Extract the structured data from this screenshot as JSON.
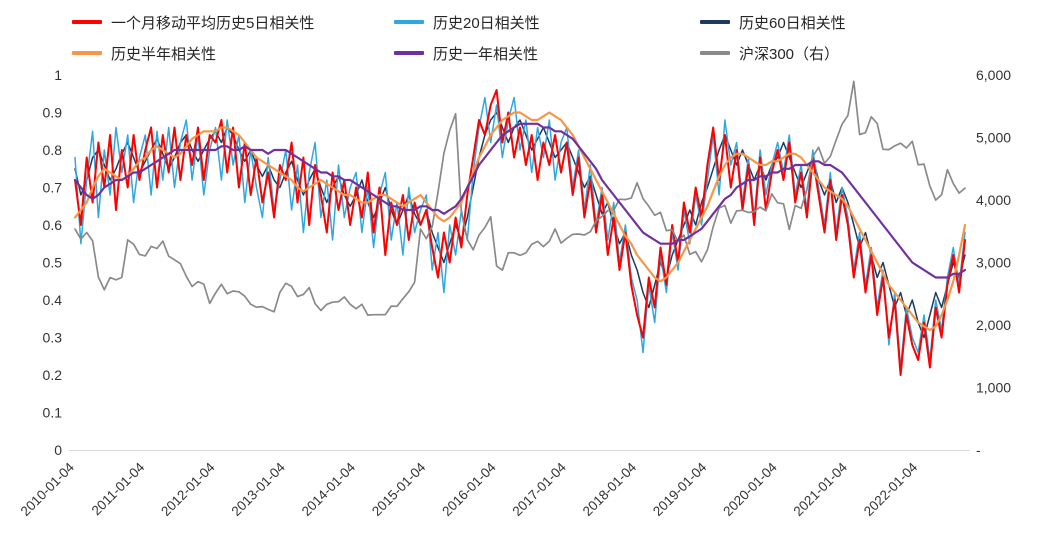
{
  "chart_data": {
    "type": "line",
    "title": "",
    "x_start": {
      "year": 2010,
      "month": 1
    },
    "points_per_year": 12,
    "x_tick_labels": [
      "2010-01-04",
      "2011-01-04",
      "2012-01-04",
      "2013-01-04",
      "2014-01-04",
      "2015-01-04",
      "2016-01-04",
      "2017-01-04",
      "2018-01-04",
      "2019-01-04",
      "2020-01-04",
      "2021-01-04",
      "2022-01-04"
    ],
    "left_axis": {
      "min": 0,
      "max": 1,
      "ticks": [
        "0",
        "0.1",
        "0.2",
        "0.3",
        "0.4",
        "0.5",
        "0.6",
        "0.7",
        "0.8",
        "0.9",
        "1"
      ]
    },
    "right_axis": {
      "min": 0,
      "max": 6000,
      "ticks": [
        "-",
        "1,000",
        "2,000",
        "3,000",
        "4,000",
        "5,000",
        "6,000"
      ]
    },
    "grid": "off",
    "legend_position": "top",
    "series": [
      {
        "name": "一个月移动平均历史5日相关性",
        "color": "#FE0000",
        "axis": "left",
        "values": [
          0.72,
          0.6,
          0.78,
          0.66,
          0.82,
          0.7,
          0.84,
          0.64,
          0.8,
          0.7,
          0.84,
          0.72,
          0.8,
          0.86,
          0.7,
          0.84,
          0.74,
          0.86,
          0.72,
          0.84,
          0.76,
          0.86,
          0.72,
          0.84,
          0.82,
          0.88,
          0.74,
          0.86,
          0.7,
          0.82,
          0.68,
          0.78,
          0.66,
          0.74,
          0.62,
          0.76,
          0.72,
          0.82,
          0.66,
          0.78,
          0.6,
          0.76,
          0.68,
          0.58,
          0.74,
          0.64,
          0.72,
          0.6,
          0.7,
          0.62,
          0.74,
          0.58,
          0.7,
          0.52,
          0.66,
          0.6,
          0.68,
          0.56,
          0.66,
          0.6,
          0.64,
          0.54,
          0.46,
          0.58,
          0.5,
          0.62,
          0.54,
          0.68,
          0.78,
          0.88,
          0.84,
          0.92,
          0.96,
          0.82,
          0.9,
          0.78,
          0.86,
          0.76,
          0.84,
          0.72,
          0.82,
          0.76,
          0.84,
          0.74,
          0.82,
          0.68,
          0.78,
          0.62,
          0.72,
          0.58,
          0.68,
          0.52,
          0.62,
          0.48,
          0.58,
          0.44,
          0.36,
          0.3,
          0.46,
          0.38,
          0.54,
          0.44,
          0.6,
          0.5,
          0.66,
          0.58,
          0.7,
          0.62,
          0.76,
          0.86,
          0.72,
          0.84,
          0.7,
          0.8,
          0.64,
          0.76,
          0.6,
          0.78,
          0.64,
          0.74,
          0.8,
          0.72,
          0.82,
          0.66,
          0.74,
          0.62,
          0.78,
          0.68,
          0.58,
          0.72,
          0.56,
          0.68,
          0.6,
          0.46,
          0.56,
          0.42,
          0.52,
          0.36,
          0.46,
          0.3,
          0.4,
          0.2,
          0.36,
          0.28,
          0.24,
          0.34,
          0.22,
          0.38,
          0.3,
          0.44,
          0.52,
          0.42,
          0.56
        ]
      },
      {
        "name": "历史20日相关性",
        "color": "#2FA8DF",
        "axis": "left",
        "values": [
          0.78,
          0.55,
          0.72,
          0.85,
          0.62,
          0.8,
          0.68,
          0.86,
          0.74,
          0.84,
          0.66,
          0.78,
          0.84,
          0.68,
          0.85,
          0.72,
          0.86,
          0.7,
          0.82,
          0.88,
          0.72,
          0.84,
          0.68,
          0.8,
          0.86,
          0.72,
          0.88,
          0.76,
          0.84,
          0.66,
          0.8,
          0.7,
          0.62,
          0.78,
          0.64,
          0.72,
          0.8,
          0.64,
          0.76,
          0.58,
          0.74,
          0.82,
          0.62,
          0.72,
          0.56,
          0.76,
          0.62,
          0.7,
          0.74,
          0.58,
          0.7,
          0.54,
          0.68,
          0.74,
          0.56,
          0.66,
          0.52,
          0.7,
          0.58,
          0.64,
          0.68,
          0.48,
          0.58,
          0.42,
          0.6,
          0.52,
          0.64,
          0.56,
          0.74,
          0.86,
          0.94,
          0.82,
          0.92,
          0.78,
          0.88,
          0.94,
          0.8,
          0.88,
          0.74,
          0.86,
          0.78,
          0.88,
          0.72,
          0.82,
          0.86,
          0.7,
          0.8,
          0.64,
          0.76,
          0.6,
          0.7,
          0.56,
          0.66,
          0.5,
          0.6,
          0.46,
          0.4,
          0.26,
          0.44,
          0.34,
          0.52,
          0.42,
          0.58,
          0.48,
          0.64,
          0.55,
          0.68,
          0.6,
          0.72,
          0.84,
          0.68,
          0.88,
          0.76,
          0.82,
          0.66,
          0.78,
          0.62,
          0.8,
          0.68,
          0.76,
          0.82,
          0.74,
          0.84,
          0.68,
          0.76,
          0.64,
          0.8,
          0.7,
          0.6,
          0.74,
          0.58,
          0.7,
          0.62,
          0.48,
          0.58,
          0.44,
          0.54,
          0.38,
          0.48,
          0.28,
          0.42,
          0.22,
          0.38,
          0.3,
          0.26,
          0.36,
          0.24,
          0.4,
          0.32,
          0.46,
          0.54,
          0.44,
          0.58
        ]
      },
      {
        "name": "历史60日相关性",
        "color": "#1F3A5F",
        "axis": "left",
        "values": [
          0.75,
          0.68,
          0.72,
          0.78,
          0.8,
          0.76,
          0.72,
          0.75,
          0.79,
          0.82,
          0.78,
          0.74,
          0.77,
          0.8,
          0.83,
          0.79,
          0.75,
          0.78,
          0.82,
          0.84,
          0.8,
          0.77,
          0.8,
          0.83,
          0.85,
          0.82,
          0.86,
          0.84,
          0.8,
          0.77,
          0.8,
          0.76,
          0.73,
          0.76,
          0.72,
          0.7,
          0.74,
          0.77,
          0.72,
          0.68,
          0.72,
          0.75,
          0.7,
          0.66,
          0.7,
          0.73,
          0.68,
          0.65,
          0.68,
          0.72,
          0.66,
          0.62,
          0.66,
          0.7,
          0.64,
          0.6,
          0.64,
          0.68,
          0.63,
          0.6,
          0.64,
          0.58,
          0.54,
          0.5,
          0.55,
          0.6,
          0.56,
          0.62,
          0.7,
          0.78,
          0.84,
          0.88,
          0.9,
          0.86,
          0.82,
          0.86,
          0.88,
          0.84,
          0.8,
          0.83,
          0.86,
          0.82,
          0.78,
          0.8,
          0.82,
          0.78,
          0.74,
          0.7,
          0.73,
          0.68,
          0.63,
          0.66,
          0.6,
          0.55,
          0.58,
          0.52,
          0.48,
          0.42,
          0.38,
          0.44,
          0.5,
          0.46,
          0.52,
          0.56,
          0.6,
          0.64,
          0.6,
          0.66,
          0.7,
          0.75,
          0.8,
          0.84,
          0.8,
          0.76,
          0.8,
          0.76,
          0.72,
          0.76,
          0.72,
          0.76,
          0.78,
          0.82,
          0.78,
          0.74,
          0.7,
          0.74,
          0.78,
          0.72,
          0.68,
          0.72,
          0.66,
          0.7,
          0.66,
          0.6,
          0.54,
          0.58,
          0.52,
          0.46,
          0.5,
          0.44,
          0.38,
          0.42,
          0.36,
          0.4,
          0.34,
          0.3,
          0.36,
          0.42,
          0.38,
          0.44,
          0.5,
          0.46,
          0.52
        ]
      },
      {
        "name": "历史半年相关性",
        "color": "#F79646",
        "axis": "left",
        "values": [
          0.62,
          0.64,
          0.66,
          0.7,
          0.73,
          0.75,
          0.74,
          0.73,
          0.72,
          0.73,
          0.75,
          0.77,
          0.78,
          0.8,
          0.81,
          0.8,
          0.79,
          0.78,
          0.79,
          0.81,
          0.83,
          0.84,
          0.85,
          0.85,
          0.85,
          0.86,
          0.86,
          0.85,
          0.84,
          0.82,
          0.8,
          0.78,
          0.77,
          0.76,
          0.75,
          0.74,
          0.73,
          0.72,
          0.7,
          0.69,
          0.7,
          0.71,
          0.72,
          0.71,
          0.7,
          0.69,
          0.68,
          0.68,
          0.67,
          0.66,
          0.66,
          0.67,
          0.68,
          0.68,
          0.67,
          0.66,
          0.65,
          0.66,
          0.67,
          0.68,
          0.66,
          0.64,
          0.62,
          0.61,
          0.62,
          0.64,
          0.66,
          0.7,
          0.74,
          0.78,
          0.81,
          0.84,
          0.86,
          0.88,
          0.89,
          0.9,
          0.9,
          0.89,
          0.88,
          0.88,
          0.89,
          0.9,
          0.89,
          0.88,
          0.86,
          0.84,
          0.81,
          0.78,
          0.75,
          0.72,
          0.69,
          0.66,
          0.63,
          0.6,
          0.57,
          0.55,
          0.52,
          0.5,
          0.48,
          0.46,
          0.45,
          0.46,
          0.48,
          0.5,
          0.53,
          0.56,
          0.59,
          0.62,
          0.65,
          0.69,
          0.73,
          0.76,
          0.78,
          0.79,
          0.79,
          0.78,
          0.77,
          0.76,
          0.76,
          0.77,
          0.77,
          0.78,
          0.79,
          0.79,
          0.78,
          0.76,
          0.74,
          0.72,
          0.7,
          0.69,
          0.68,
          0.67,
          0.65,
          0.62,
          0.59,
          0.56,
          0.53,
          0.5,
          0.47,
          0.44,
          0.42,
          0.4,
          0.38,
          0.36,
          0.34,
          0.33,
          0.32,
          0.33,
          0.36,
          0.4,
          0.45,
          0.52,
          0.6
        ]
      },
      {
        "name": "历史一年相关性",
        "color": "#7030A0",
        "axis": "left",
        "values": [
          0.72,
          0.7,
          0.68,
          0.67,
          0.68,
          0.7,
          0.71,
          0.72,
          0.72,
          0.73,
          0.74,
          0.74,
          0.75,
          0.76,
          0.77,
          0.78,
          0.79,
          0.8,
          0.8,
          0.8,
          0.8,
          0.8,
          0.8,
          0.8,
          0.8,
          0.81,
          0.81,
          0.8,
          0.8,
          0.81,
          0.8,
          0.8,
          0.8,
          0.79,
          0.8,
          0.8,
          0.8,
          0.79,
          0.78,
          0.77,
          0.76,
          0.75,
          0.74,
          0.74,
          0.73,
          0.73,
          0.72,
          0.72,
          0.71,
          0.7,
          0.69,
          0.68,
          0.67,
          0.66,
          0.65,
          0.65,
          0.64,
          0.64,
          0.64,
          0.65,
          0.65,
          0.64,
          0.64,
          0.63,
          0.64,
          0.65,
          0.67,
          0.7,
          0.73,
          0.76,
          0.78,
          0.8,
          0.82,
          0.84,
          0.85,
          0.86,
          0.87,
          0.87,
          0.87,
          0.87,
          0.86,
          0.86,
          0.85,
          0.85,
          0.84,
          0.83,
          0.81,
          0.79,
          0.77,
          0.75,
          0.72,
          0.7,
          0.68,
          0.66,
          0.64,
          0.62,
          0.6,
          0.58,
          0.57,
          0.56,
          0.55,
          0.55,
          0.55,
          0.56,
          0.56,
          0.57,
          0.58,
          0.59,
          0.61,
          0.63,
          0.65,
          0.67,
          0.68,
          0.7,
          0.71,
          0.72,
          0.72,
          0.73,
          0.73,
          0.74,
          0.74,
          0.75,
          0.75,
          0.76,
          0.76,
          0.76,
          0.77,
          0.77,
          0.76,
          0.76,
          0.75,
          0.74,
          0.72,
          0.7,
          0.68,
          0.66,
          0.64,
          0.62,
          0.6,
          0.58,
          0.56,
          0.54,
          0.52,
          0.5,
          0.49,
          0.48,
          0.47,
          0.46,
          0.46,
          0.46,
          0.47,
          0.47,
          0.48
        ]
      },
      {
        "name": "沪深300（右）",
        "color": "#8A8A8A",
        "axis": "right",
        "values": [
          3535,
          3372,
          3480,
          3345,
          2768,
          2563,
          2760,
          2721,
          2762,
          3361,
          3293,
          3129,
          3105,
          3258,
          3224,
          3343,
          3101,
          3044,
          2981,
          2780,
          2616,
          2695,
          2654,
          2346,
          2511,
          2651,
          2501,
          2544,
          2532,
          2461,
          2332,
          2285,
          2294,
          2250,
          2211,
          2523,
          2669,
          2618,
          2455,
          2489,
          2599,
          2341,
          2232,
          2331,
          2365,
          2373,
          2450,
          2331,
          2261,
          2332,
          2159,
          2165,
          2165,
          2166,
          2303,
          2300,
          2421,
          2533,
          2683,
          3534,
          3381,
          3574,
          4124,
          4748,
          5113,
          5380,
          3796,
          3366,
          3203,
          3439,
          3560,
          3731,
          2946,
          2877,
          3157,
          3156,
          3113,
          3154,
          3292,
          3337,
          3254,
          3340,
          3538,
          3310,
          3388,
          3452,
          3456,
          3440,
          3492,
          3666,
          3737,
          3831,
          3837,
          4013,
          4006,
          4031,
          4276,
          4023,
          3899,
          3756,
          3802,
          3511,
          3523,
          3335,
          3439,
          3130,
          3173,
          3011,
          3202,
          3572,
          3872,
          3913,
          3630,
          3825,
          3835,
          3800,
          3815,
          3887,
          3828,
          4097,
          3955,
          3940,
          3530,
          3912,
          3867,
          4164,
          4696,
          4844,
          4587,
          4696,
          4961,
          5211,
          5352,
          5900,
          5048,
          5077,
          5331,
          5224,
          4811,
          4806,
          4866,
          4909,
          4832,
          4940,
          4564,
          4574,
          4223,
          3999,
          4083,
          4485,
          4263,
          4110,
          4190
        ]
      }
    ]
  }
}
